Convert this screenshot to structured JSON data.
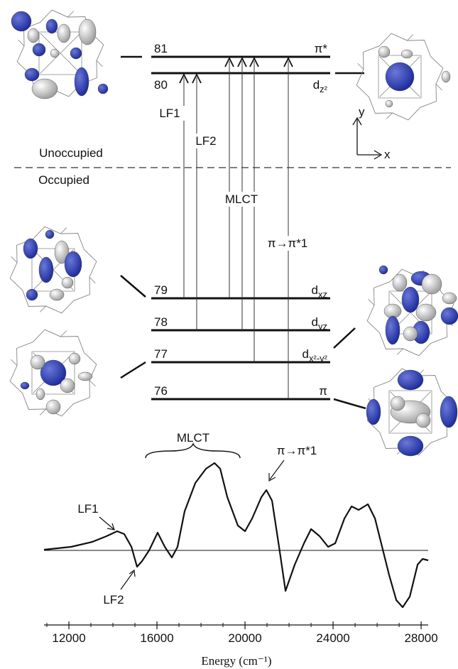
{
  "diagram": {
    "levels": [
      {
        "number": "81",
        "symbol": "π*"
      },
      {
        "number": "80",
        "symbol": "d",
        "subscript": "z²"
      },
      {
        "number": "79",
        "symbol": "d",
        "subscript": "xz"
      },
      {
        "number": "78",
        "symbol": "d",
        "subscript": "yz"
      },
      {
        "number": "77",
        "symbol": "d",
        "subscript": "x²-y²"
      },
      {
        "number": "76",
        "symbol": "π"
      }
    ],
    "region_labels": {
      "upper": "Unoccupied",
      "lower": "Occupied"
    },
    "transitions": [
      {
        "label": "LF1"
      },
      {
        "label": "LF2"
      },
      {
        "label": "MLCT"
      },
      {
        "label": "π→π*1"
      }
    ],
    "axes": {
      "y": "y",
      "x": "x"
    }
  },
  "chart_data": {
    "type": "line",
    "x_label": "Energy (cm⁻¹)",
    "x": [
      10870,
      12100,
      13060,
      13710,
      14190,
      14516,
      14839,
      15097,
      15323,
      15645,
      16032,
      16355,
      16677,
      16935,
      17258,
      17742,
      18226,
      18613,
      18871,
      19194,
      19677,
      20000,
      20323,
      20742,
      20968,
      21226,
      21548,
      21839,
      22258,
      22677,
      23000,
      23387,
      23774,
      24097,
      24516,
      24839,
      25161,
      25581,
      25903,
      26226,
      26548,
      26871,
      27161,
      27484,
      27839,
      28065,
      28323
    ],
    "values": [
      1,
      5,
      12,
      20,
      27,
      23,
      5,
      -23,
      -15,
      0,
      25,
      5,
      -10,
      5,
      55,
      95,
      115,
      123,
      115,
      75,
      35,
      27,
      45,
      75,
      85,
      70,
      5,
      -57,
      -20,
      10,
      30,
      20,
      5,
      10,
      45,
      62,
      57,
      65,
      45,
      5,
      -35,
      -70,
      -80,
      -65,
      -20,
      -12,
      -14
    ],
    "color": "#111111",
    "xlim": [
      10870,
      28320
    ],
    "ylim": [
      -105,
      135
    ],
    "xticks": [
      12000,
      16000,
      20000,
      24000,
      28000
    ],
    "xminorticks": [
      11000,
      13000,
      14000,
      15000,
      17000,
      18000,
      19000,
      21000,
      22000,
      23000,
      25000,
      26000,
      27000
    ],
    "zero_line": true,
    "annotations": [
      "MLCT",
      "LF1",
      "LF2",
      "π→π*1"
    ]
  }
}
